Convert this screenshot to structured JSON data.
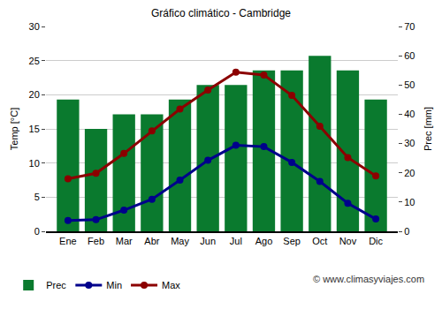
{
  "chart_data": {
    "type": "bar",
    "title": "Gráfico climático - Cambridge",
    "y_label": "Temp [°C]",
    "y2_label": "Prec [mm]",
    "categories": [
      "Ene",
      "Feb",
      "Mar",
      "Abr",
      "May",
      "Jun",
      "Jul",
      "Ago",
      "Sep",
      "Oct",
      "Nov",
      "Dic"
    ],
    "series": [
      {
        "name": "Prec",
        "type": "bar",
        "axis": "y2",
        "color": "#0a7a2e",
        "values": [
          45,
          35,
          40,
          40,
          45,
          50,
          50,
          55,
          55,
          60,
          55,
          45
        ]
      },
      {
        "name": "Min",
        "type": "line",
        "color": "#00008b",
        "marker": "circle",
        "values": [
          1.6,
          1.7,
          3.1,
          4.7,
          7.5,
          10.4,
          12.6,
          12.4,
          10.1,
          7.3,
          4.1,
          1.8
        ]
      },
      {
        "name": "Max",
        "type": "line",
        "color": "#8b0000",
        "marker": "circle",
        "values": [
          7.7,
          8.5,
          11.4,
          14.7,
          17.9,
          20.7,
          23.3,
          22.9,
          19.9,
          15.4,
          10.8,
          8.1
        ]
      }
    ],
    "ylim": [
      0,
      30
    ],
    "yticks": [
      0,
      5,
      10,
      15,
      20,
      25,
      30
    ],
    "y2lim": [
      0,
      70
    ],
    "y2ticks": [
      0,
      10,
      20,
      30,
      40,
      50,
      60,
      70
    ],
    "grid": true,
    "legend": "bottom",
    "annotations": [
      "© www.climasyviajes.com"
    ]
  }
}
